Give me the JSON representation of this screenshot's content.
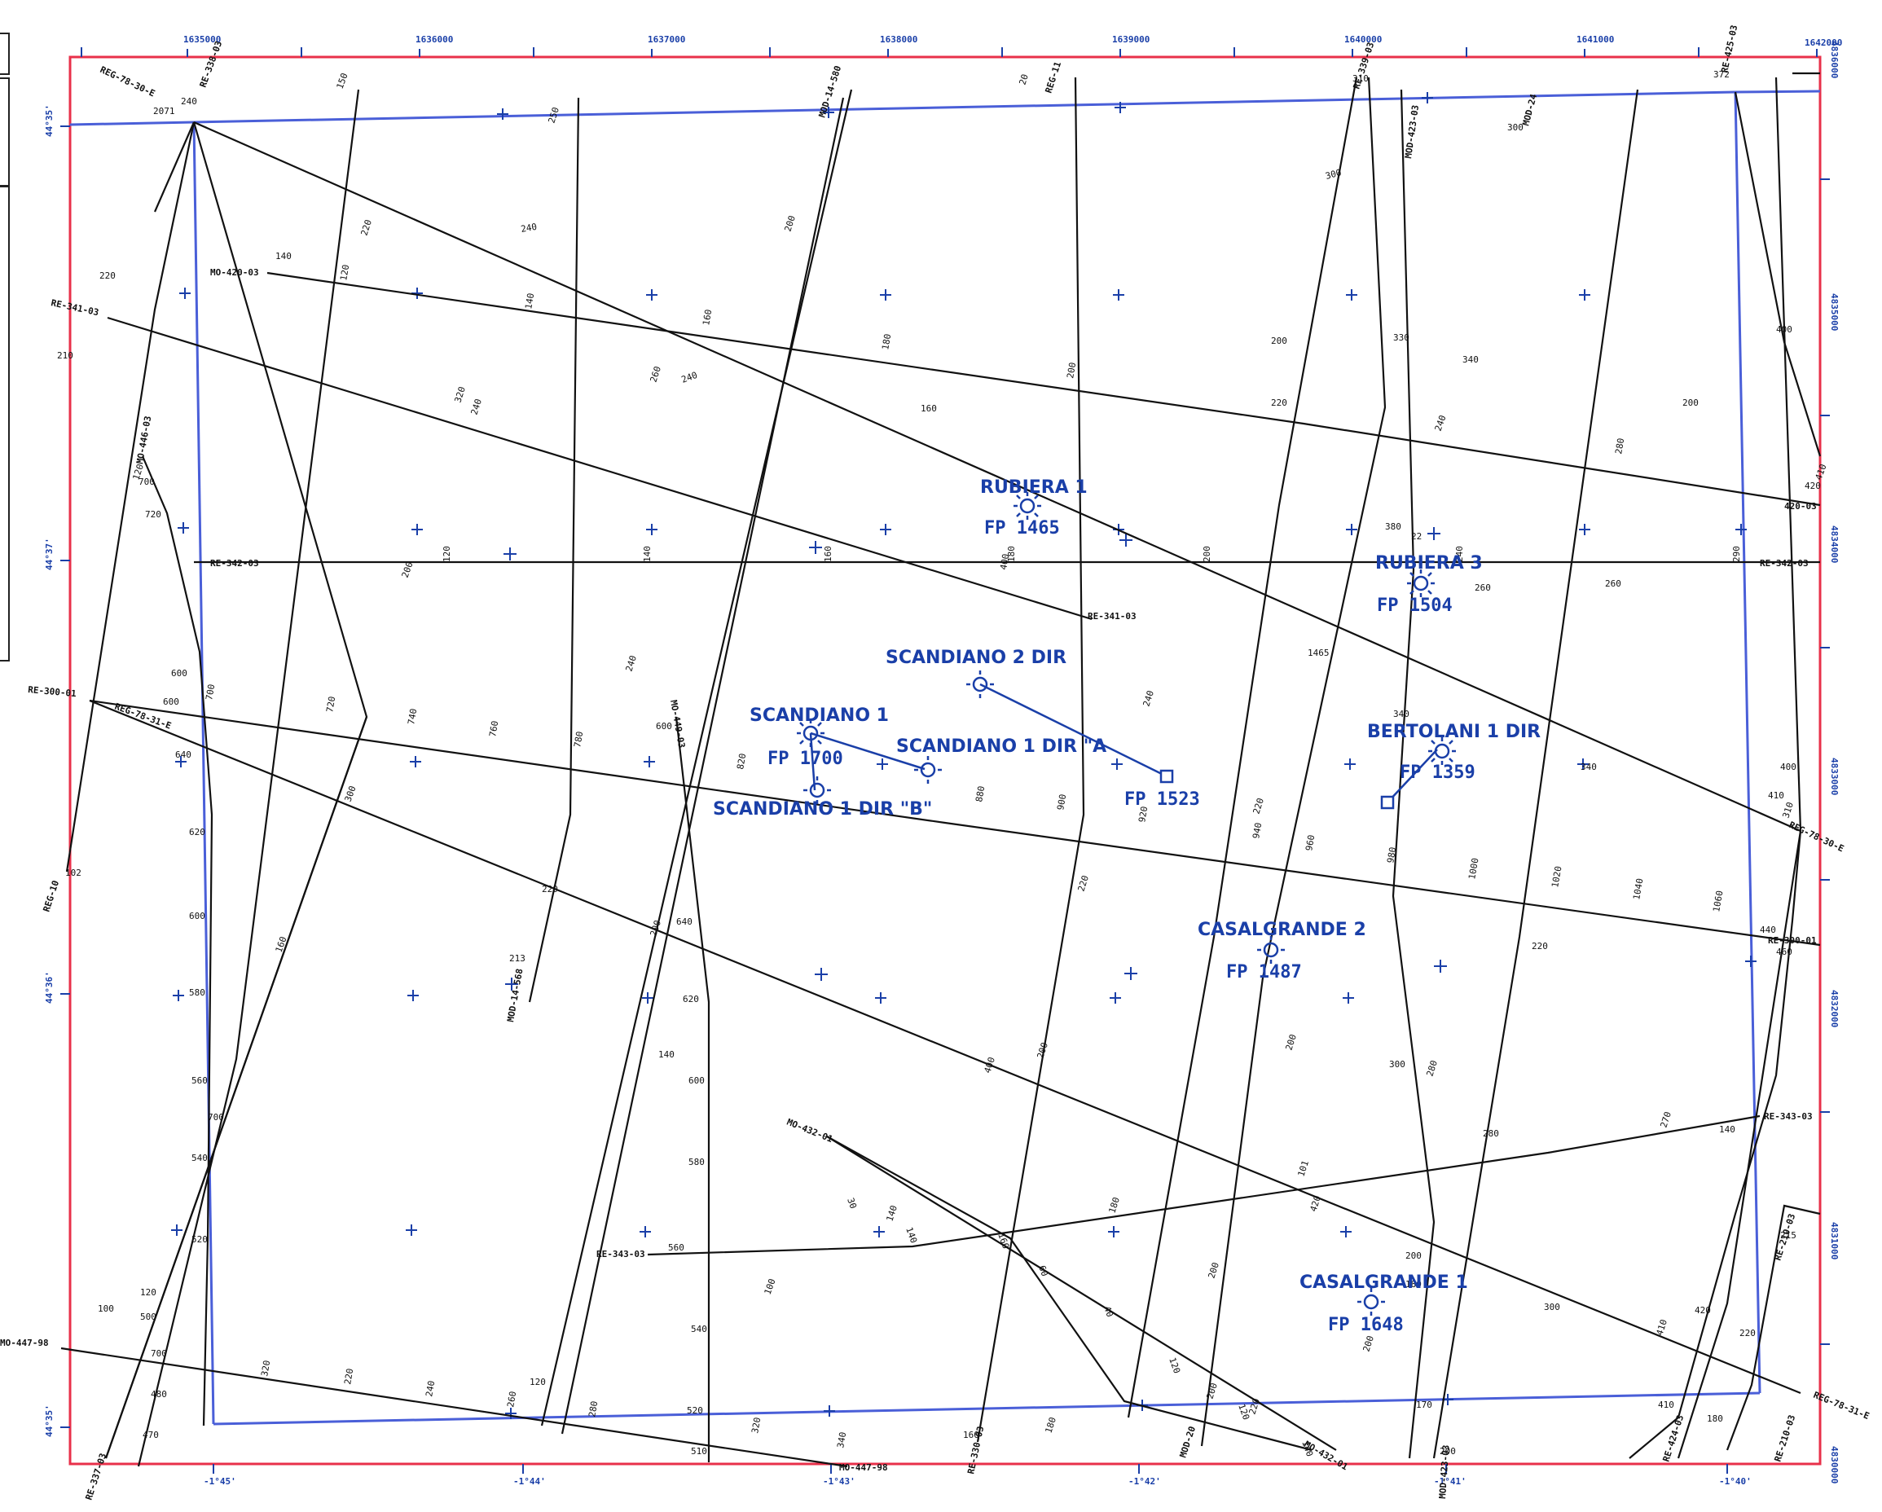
{
  "map": {
    "coord_top": [
      "1635000",
      "1636000",
      "1637000",
      "1638000",
      "1639000",
      "1640000",
      "1641000",
      "1642000"
    ],
    "coord_bottom": [
      "-1°45'",
      "-1°44'",
      "-1°43'",
      "-1°42'",
      "-1°41'",
      "-1°40'"
    ],
    "coord_left": [
      "44°35'",
      "44°37'",
      "44°36'",
      "44°35'"
    ],
    "coord_right": [
      "4830000",
      "4831000",
      "4832000",
      "4833000",
      "4834000",
      "4835000",
      "4836000"
    ],
    "colors": {
      "frame": "#e8304a",
      "well": "#1a3fa8",
      "seismic": "#111111"
    }
  },
  "wells": [
    {
      "name": "RUBIERA 1",
      "fp": "FP 1465"
    },
    {
      "name": "RUBIERA 3",
      "fp": "FP 1504"
    },
    {
      "name": "SCANDIANO 2 DIR",
      "fp": "FP 1523"
    },
    {
      "name": "SCANDIANO 1",
      "fp": "FP 1700"
    },
    {
      "name": "SCANDIANO 1 DIR \"A",
      "fp": ""
    },
    {
      "name": "SCANDIANO 1 DIR \"B\"",
      "fp": ""
    },
    {
      "name": "BERTOLANI 1 DIR",
      "fp": "FP 1359"
    },
    {
      "name": "CASALGRANDE 2",
      "fp": "FP 1487"
    },
    {
      "name": "CASALGRANDE 1",
      "fp": "FP 1648"
    }
  ],
  "lines": [
    {
      "name": "REG-78-30-E"
    },
    {
      "name": "RE-337-03"
    },
    {
      "name": "REG-10"
    },
    {
      "name": "RE-338-03"
    },
    {
      "name": "MOD-14-580"
    },
    {
      "name": "REG-11"
    },
    {
      "name": "RE-339-03"
    },
    {
      "name": "MOD-423-03"
    },
    {
      "name": "MOD-24"
    },
    {
      "name": "RE-424-03"
    },
    {
      "name": "RE-425-03"
    },
    {
      "name": "MO-420-03"
    },
    {
      "name": "RE-341-03"
    },
    {
      "name": "RE-342-03"
    },
    {
      "name": "RE-300-01"
    },
    {
      "name": "REG-78-31-E"
    },
    {
      "name": "MO-446-03"
    },
    {
      "name": "MO-449-03"
    },
    {
      "name": "MOD-14-568"
    },
    {
      "name": "MO-432-01"
    },
    {
      "name": "RE-343-03"
    },
    {
      "name": "MO-447-98"
    },
    {
      "name": "MOD-20"
    },
    {
      "name": "RE-330-03"
    },
    {
      "name": "RE-210-03"
    },
    {
      "name": "420-03"
    }
  ]
}
